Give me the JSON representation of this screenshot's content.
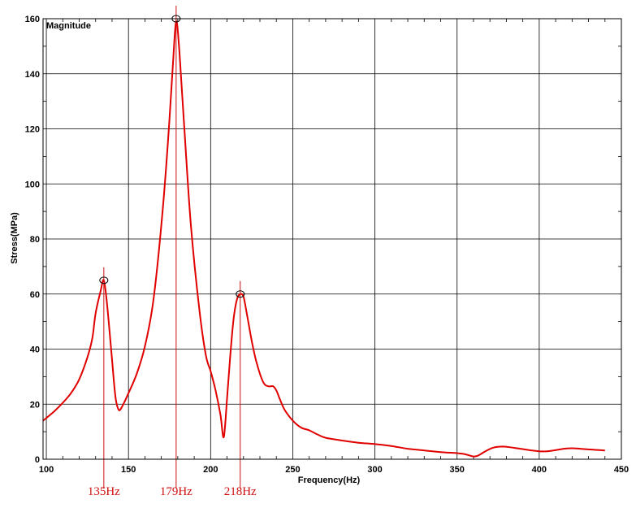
{
  "chart_data": {
    "type": "line",
    "panel_label": "Magnitude",
    "xlabel": "Frequency(Hz)",
    "ylabel": "Stress(MPa)",
    "xlim": [
      98,
      450
    ],
    "ylim": [
      0,
      160
    ],
    "xticks": [
      100,
      150,
      200,
      250,
      300,
      350,
      400,
      450
    ],
    "yticks": [
      0,
      20,
      40,
      60,
      80,
      100,
      120,
      140,
      160
    ],
    "grid": true,
    "series_color": "#e00000",
    "marker_color": "#d01010",
    "series": [
      {
        "x": [
          98,
          105,
          110,
          115,
          120,
          125,
          128,
          130,
          133,
          135,
          137,
          140,
          142,
          144,
          146,
          150,
          155,
          160,
          165,
          170,
          174,
          177,
          179,
          181,
          184,
          188,
          193,
          197,
          200,
          203,
          206,
          208,
          210,
          212,
          214,
          216,
          218,
          220,
          222,
          225,
          228,
          232,
          235,
          238,
          240,
          242,
          245,
          250,
          255,
          260,
          265,
          270,
          280,
          290,
          300,
          310,
          320,
          330,
          340,
          350,
          355,
          360,
          363,
          367,
          372,
          378,
          385,
          393,
          400,
          405,
          410,
          415,
          420,
          425,
          432,
          440
        ],
        "y": [
          14,
          17.5,
          20.5,
          24,
          29,
          37,
          44,
          53,
          61,
          65,
          56,
          36,
          23,
          18,
          19,
          24,
          31,
          41,
          57,
          85,
          115,
          143,
          159,
          148,
          120,
          85,
          55,
          38,
          32,
          25,
          16,
          8,
          22,
          38,
          51,
          58,
          60,
          59,
          53,
          43,
          35,
          28,
          26.5,
          26.5,
          25,
          22,
          18,
          14,
          11.5,
          10.5,
          9,
          7.8,
          6.8,
          6,
          5.5,
          4.8,
          3.8,
          3.2,
          2.6,
          2.2,
          1.8,
          1.0,
          1.4,
          2.8,
          4.2,
          4.6,
          4.1,
          3.4,
          2.9,
          2.9,
          3.3,
          3.8,
          4.0,
          3.8,
          3.5,
          3.2
        ]
      }
    ],
    "peaks": [
      {
        "x": 135,
        "y": 65,
        "label": "135Hz"
      },
      {
        "x": 179,
        "y": 160,
        "label": "179Hz"
      },
      {
        "x": 218,
        "y": 60,
        "label": "218Hz"
      }
    ]
  }
}
